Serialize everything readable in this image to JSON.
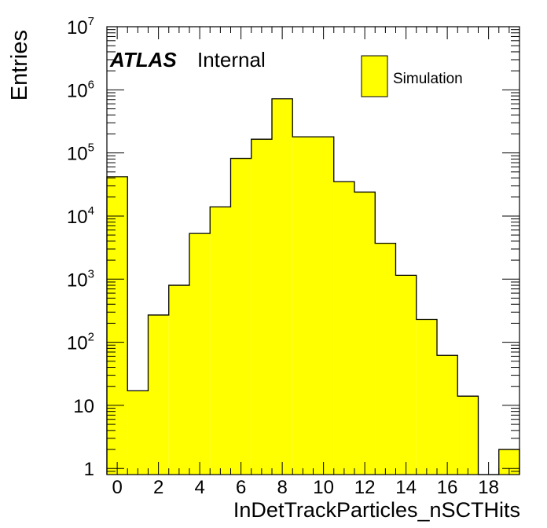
{
  "chart_data": {
    "type": "bar",
    "ylabel": "Entries",
    "xlabel": "InDetTrackParticles_nSCTHits",
    "yscale": "log",
    "ylim": [
      0.8,
      10000000
    ],
    "xlim": [
      -0.5,
      19.5
    ],
    "fill_color": "#ffff00",
    "grid": false,
    "legend_position": "top-right",
    "atlas_label": "ATLAS",
    "atlas_sublabel": "Internal",
    "series": [
      {
        "name": "Simulation",
        "values": [
          42000,
          17,
          270,
          800,
          5300,
          14000,
          82000,
          165000,
          720000,
          180000,
          180000,
          35000,
          24000,
          3700,
          1150,
          230,
          62,
          14,
          0,
          2
        ]
      }
    ],
    "x_bins": [
      0,
      1,
      2,
      3,
      4,
      5,
      6,
      7,
      8,
      9,
      10,
      11,
      12,
      13,
      14,
      15,
      16,
      17,
      18,
      19
    ],
    "x_tick_labels": [
      "0",
      "2",
      "4",
      "6",
      "8",
      "10",
      "12",
      "14",
      "16",
      "18"
    ],
    "x_tick_values": [
      0,
      2,
      4,
      6,
      8,
      10,
      12,
      14,
      16,
      18
    ],
    "y_tick_values": [
      1,
      10,
      100,
      1000,
      10000,
      100000,
      1000000,
      10000000
    ],
    "y_tick_labels": [
      {
        "base": "1",
        "exp": ""
      },
      {
        "base": "10",
        "exp": ""
      },
      {
        "base": "10",
        "exp": "2"
      },
      {
        "base": "10",
        "exp": "3"
      },
      {
        "base": "10",
        "exp": "4"
      },
      {
        "base": "10",
        "exp": "5"
      },
      {
        "base": "10",
        "exp": "6"
      },
      {
        "base": "10",
        "exp": "7"
      }
    ]
  }
}
